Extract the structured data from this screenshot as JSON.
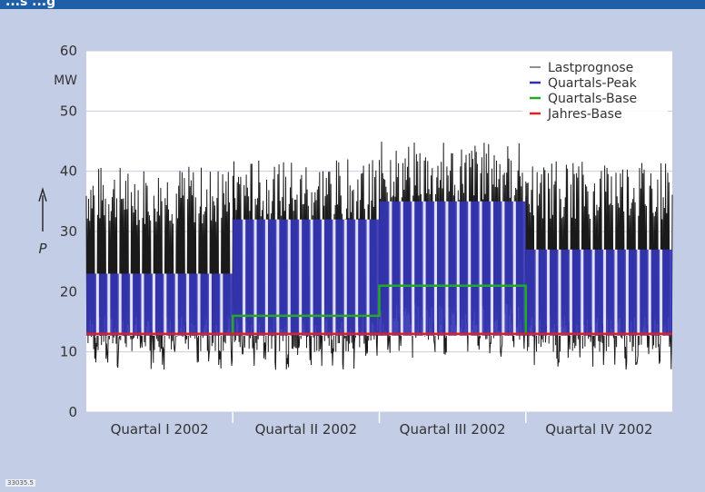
{
  "header": {
    "title_fragment": "...s ...g"
  },
  "footer": {
    "code": "33035.5"
  },
  "chart_data": {
    "type": "line",
    "ylabel": "P",
    "yunit": "MW",
    "ylim": [
      0,
      60
    ],
    "yticks": [
      0,
      10,
      20,
      30,
      40,
      50,
      60
    ],
    "grid": true,
    "legend_position": "top-right",
    "categories": [
      "Quartal I 2002",
      "Quartal II 2002",
      "Quartal III 2002",
      "Quartal IV 2002"
    ],
    "series": [
      {
        "name": "Lastprognose",
        "color": "#222222",
        "values_description_free": true
      },
      {
        "name": "Quartals-Peak",
        "color": "#2f2fb0",
        "values": [
          23,
          32,
          35,
          27
        ]
      },
      {
        "name": "Quartals-Base",
        "color": "#22aa22",
        "values": [
          13,
          16,
          21,
          13
        ]
      },
      {
        "name": "Jahres-Base",
        "color": "#e02020",
        "values": [
          13,
          13,
          13,
          13
        ]
      }
    ],
    "colors": {
      "plot_bg": "#ffffff",
      "page_bg": "#c3cde6",
      "grid": "#c8cde0",
      "peak_fill": "#3535b5"
    }
  }
}
